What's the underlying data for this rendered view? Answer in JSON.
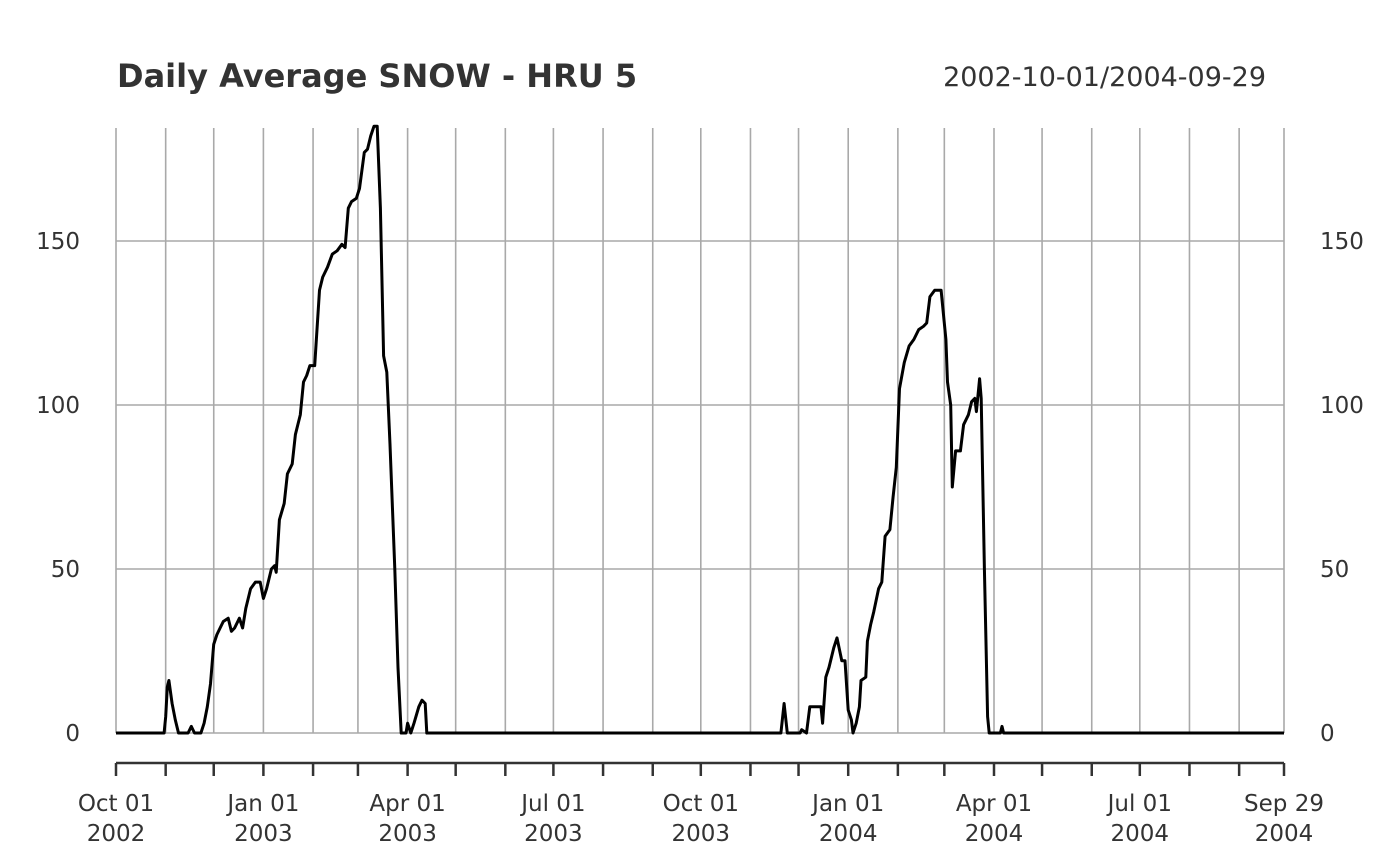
{
  "chart_data": {
    "type": "line",
    "title": "Daily Average SNOW - HRU 5",
    "date_range": "2002-10-01/2004-09-29",
    "xlabel": "",
    "ylabel": "",
    "xlim": [
      "2002-10-01",
      "2004-09-29"
    ],
    "ylim": [
      -8,
      185
    ],
    "y_ticks": [
      0,
      50,
      100,
      150
    ],
    "y_tick_labels": [
      "0",
      "50",
      "100",
      "150"
    ],
    "y_axis_both_sides": true,
    "x_ticks": [
      {
        "date": "2002-10-01",
        "line1": "Oct 01",
        "line2": "2002"
      },
      {
        "date": "2003-01-01",
        "line1": "Jan 01",
        "line2": "2003"
      },
      {
        "date": "2003-04-01",
        "line1": "Apr 01",
        "line2": "2003"
      },
      {
        "date": "2003-07-01",
        "line1": "Jul 01",
        "line2": "2003"
      },
      {
        "date": "2003-10-01",
        "line1": "Oct 01",
        "line2": "2003"
      },
      {
        "date": "2004-01-01",
        "line1": "Jan 01",
        "line2": "2004"
      },
      {
        "date": "2004-04-01",
        "line1": "Apr 01",
        "line2": "2004"
      },
      {
        "date": "2004-07-01",
        "line1": "Jul 01",
        "line2": "2004"
      },
      {
        "date": "2004-09-29",
        "line1": "Sep 29",
        "line2": "2004"
      }
    ],
    "grid_lines_monthly": true,
    "grid": true,
    "legend": "none",
    "series": [
      {
        "color": "#000000",
        "points": [
          [
            "2002-10-01",
            0
          ],
          [
            "2002-10-31",
            0
          ],
          [
            "2002-11-01",
            5
          ],
          [
            "2002-11-02",
            14
          ],
          [
            "2002-11-03",
            16
          ],
          [
            "2002-11-05",
            9
          ],
          [
            "2002-11-07",
            4
          ],
          [
            "2002-11-09",
            0
          ],
          [
            "2002-11-15",
            0
          ],
          [
            "2002-11-17",
            2
          ],
          [
            "2002-11-19",
            0
          ],
          [
            "2002-11-23",
            0
          ],
          [
            "2002-11-25",
            3
          ],
          [
            "2002-11-27",
            8
          ],
          [
            "2002-11-29",
            15
          ],
          [
            "2002-12-01",
            27
          ],
          [
            "2002-12-03",
            30
          ],
          [
            "2002-12-05",
            32
          ],
          [
            "2002-12-07",
            34
          ],
          [
            "2002-12-10",
            35
          ],
          [
            "2002-12-12",
            31
          ],
          [
            "2002-12-14",
            32
          ],
          [
            "2002-12-17",
            35
          ],
          [
            "2002-12-19",
            32
          ],
          [
            "2002-12-21",
            38
          ],
          [
            "2002-12-24",
            44
          ],
          [
            "2002-12-27",
            46
          ],
          [
            "2002-12-30",
            46
          ],
          [
            "2003-01-01",
            41
          ],
          [
            "2003-01-03",
            44
          ],
          [
            "2003-01-06",
            50
          ],
          [
            "2003-01-08",
            51
          ],
          [
            "2003-01-09",
            49
          ],
          [
            "2003-01-11",
            65
          ],
          [
            "2003-01-14",
            70
          ],
          [
            "2003-01-16",
            79
          ],
          [
            "2003-01-19",
            82
          ],
          [
            "2003-01-21",
            91
          ],
          [
            "2003-01-24",
            97
          ],
          [
            "2003-01-26",
            107
          ],
          [
            "2003-01-28",
            109
          ],
          [
            "2003-01-30",
            112
          ],
          [
            "2003-02-02",
            112
          ],
          [
            "2003-02-05",
            135
          ],
          [
            "2003-02-07",
            139
          ],
          [
            "2003-02-10",
            142
          ],
          [
            "2003-02-13",
            146
          ],
          [
            "2003-02-16",
            147
          ],
          [
            "2003-02-19",
            149
          ],
          [
            "2003-02-21",
            148
          ],
          [
            "2003-02-23",
            160
          ],
          [
            "2003-02-25",
            162
          ],
          [
            "2003-02-28",
            163
          ],
          [
            "2003-03-02",
            166
          ],
          [
            "2003-03-05",
            177
          ],
          [
            "2003-03-07",
            178
          ],
          [
            "2003-03-09",
            182
          ],
          [
            "2003-03-11",
            185
          ],
          [
            "2003-03-13",
            185
          ],
          [
            "2003-03-15",
            160
          ],
          [
            "2003-03-17",
            115
          ],
          [
            "2003-03-19",
            110
          ],
          [
            "2003-03-21",
            88
          ],
          [
            "2003-03-24",
            50
          ],
          [
            "2003-03-26",
            20
          ],
          [
            "2003-03-28",
            0
          ],
          [
            "2003-03-31",
            0
          ],
          [
            "2003-04-01",
            3
          ],
          [
            "2003-04-03",
            0
          ],
          [
            "2003-04-05",
            3
          ],
          [
            "2003-04-08",
            8
          ],
          [
            "2003-04-10",
            10
          ],
          [
            "2003-04-12",
            9
          ],
          [
            "2003-04-13",
            0
          ],
          [
            "2003-11-20",
            0
          ],
          [
            "2003-11-22",
            9
          ],
          [
            "2003-11-24",
            0
          ],
          [
            "2003-12-02",
            0
          ],
          [
            "2003-12-03",
            1
          ],
          [
            "2003-12-06",
            0
          ],
          [
            "2003-12-08",
            8
          ],
          [
            "2003-12-15",
            8
          ],
          [
            "2003-12-16",
            3
          ],
          [
            "2003-12-18",
            17
          ],
          [
            "2003-12-20",
            20
          ],
          [
            "2003-12-23",
            26
          ],
          [
            "2003-12-25",
            29
          ],
          [
            "2003-12-28",
            22
          ],
          [
            "2003-12-30",
            22
          ],
          [
            "2004-01-01",
            7
          ],
          [
            "2004-01-03",
            4
          ],
          [
            "2004-01-04",
            0
          ],
          [
            "2004-01-06",
            3
          ],
          [
            "2004-01-08",
            8
          ],
          [
            "2004-01-09",
            16
          ],
          [
            "2004-01-12",
            17
          ],
          [
            "2004-01-13",
            28
          ],
          [
            "2004-01-15",
            33
          ],
          [
            "2004-01-17",
            37
          ],
          [
            "2004-01-20",
            44
          ],
          [
            "2004-01-22",
            46
          ],
          [
            "2004-01-24",
            60
          ],
          [
            "2004-01-27",
            62
          ],
          [
            "2004-01-29",
            72
          ],
          [
            "2004-01-31",
            81
          ],
          [
            "2004-02-02",
            105
          ],
          [
            "2004-02-05",
            113
          ],
          [
            "2004-02-08",
            118
          ],
          [
            "2004-02-11",
            120
          ],
          [
            "2004-02-14",
            123
          ],
          [
            "2004-02-17",
            124
          ],
          [
            "2004-02-19",
            125
          ],
          [
            "2004-02-21",
            133
          ],
          [
            "2004-02-24",
            135
          ],
          [
            "2004-02-28",
            135
          ],
          [
            "2004-03-02",
            120
          ],
          [
            "2004-03-03",
            107
          ],
          [
            "2004-03-05",
            100
          ],
          [
            "2004-03-06",
            75
          ],
          [
            "2004-03-08",
            86
          ],
          [
            "2004-03-11",
            86
          ],
          [
            "2004-03-13",
            94
          ],
          [
            "2004-03-16",
            97
          ],
          [
            "2004-03-18",
            101
          ],
          [
            "2004-03-20",
            102
          ],
          [
            "2004-03-21",
            98
          ],
          [
            "2004-03-23",
            108
          ],
          [
            "2004-03-24",
            102
          ],
          [
            "2004-03-26",
            50
          ],
          [
            "2004-03-28",
            5
          ],
          [
            "2004-03-29",
            0
          ],
          [
            "2004-04-05",
            0
          ],
          [
            "2004-04-06",
            2
          ],
          [
            "2004-04-07",
            0
          ],
          [
            "2004-09-29",
            0
          ]
        ]
      }
    ]
  }
}
